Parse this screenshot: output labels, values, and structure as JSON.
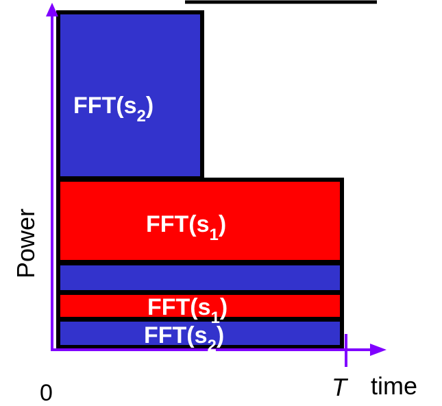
{
  "colors": {
    "blue": "#3333cc",
    "red": "#ff0000",
    "axis": "#7f00ff",
    "outline": "#000000",
    "label": "#ffffff"
  },
  "axes": {
    "y_label": "Power",
    "x_origin": "0",
    "x_end": "T",
    "x_label": "time"
  },
  "blocks": {
    "tall_blue": {
      "text": "FFT(s",
      "sub": "2",
      "close": ")"
    },
    "red_top": {
      "text": "FFT(s",
      "sub": "1",
      "close": ")"
    },
    "red_strip": {
      "text": "FFT(s",
      "sub": "1",
      "close": ")"
    },
    "blue_strip": {
      "text": "FFT(s",
      "sub": "2",
      "close": ")"
    }
  },
  "header_line": true
}
